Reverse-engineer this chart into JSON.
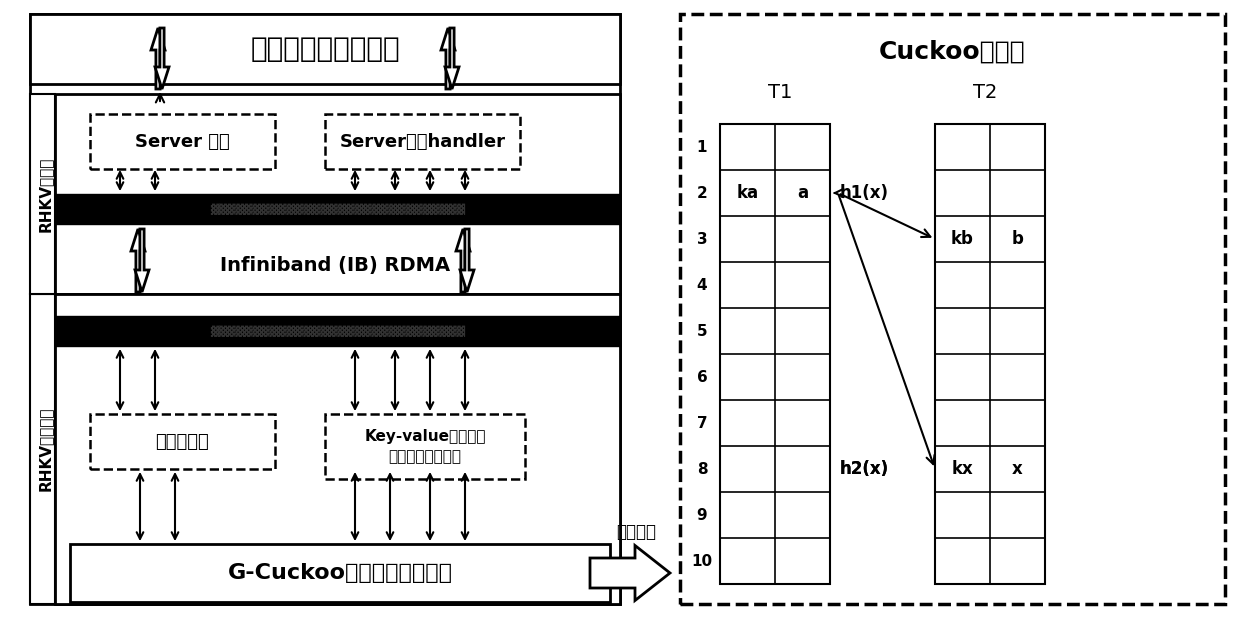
{
  "title_top": "内存数据密集型应用",
  "label_client": "RHKV客户端",
  "label_server": "RHKV服务器端",
  "box_server_info": "Server 信息",
  "box_server_handler": "Server响应handler",
  "label_rdma": "Infiniband (IB) RDMA",
  "box_mode_manager": "模式管理器",
  "box_kv": "Key-value键值对数\n据查找、更新，等",
  "box_gcuckoo": "G-Cuckoo哈希数据管理模式",
  "label_data_struct": "数据结构",
  "cuckoo_title": "Cuckoo哈希表",
  "t1_label": "T1",
  "t2_label": "T2",
  "row_labels": [
    "1",
    "2",
    "3",
    "4",
    "5",
    "6",
    "7",
    "8",
    "9",
    "10"
  ],
  "t1_cells": {
    "2": [
      "ka",
      "a"
    ],
    "3": [
      "",
      ""
    ],
    "4": [
      "",
      ""
    ],
    "5": [
      "",
      ""
    ]
  },
  "t2_cells": {
    "3": [
      "kb",
      "b"
    ],
    "8": [
      "kx",
      "x"
    ]
  },
  "h1x_label": "h1(x)",
  "h2x_label": "h2(x)",
  "bg_color": "#ffffff",
  "black": "#000000",
  "gray_text": "#555555"
}
